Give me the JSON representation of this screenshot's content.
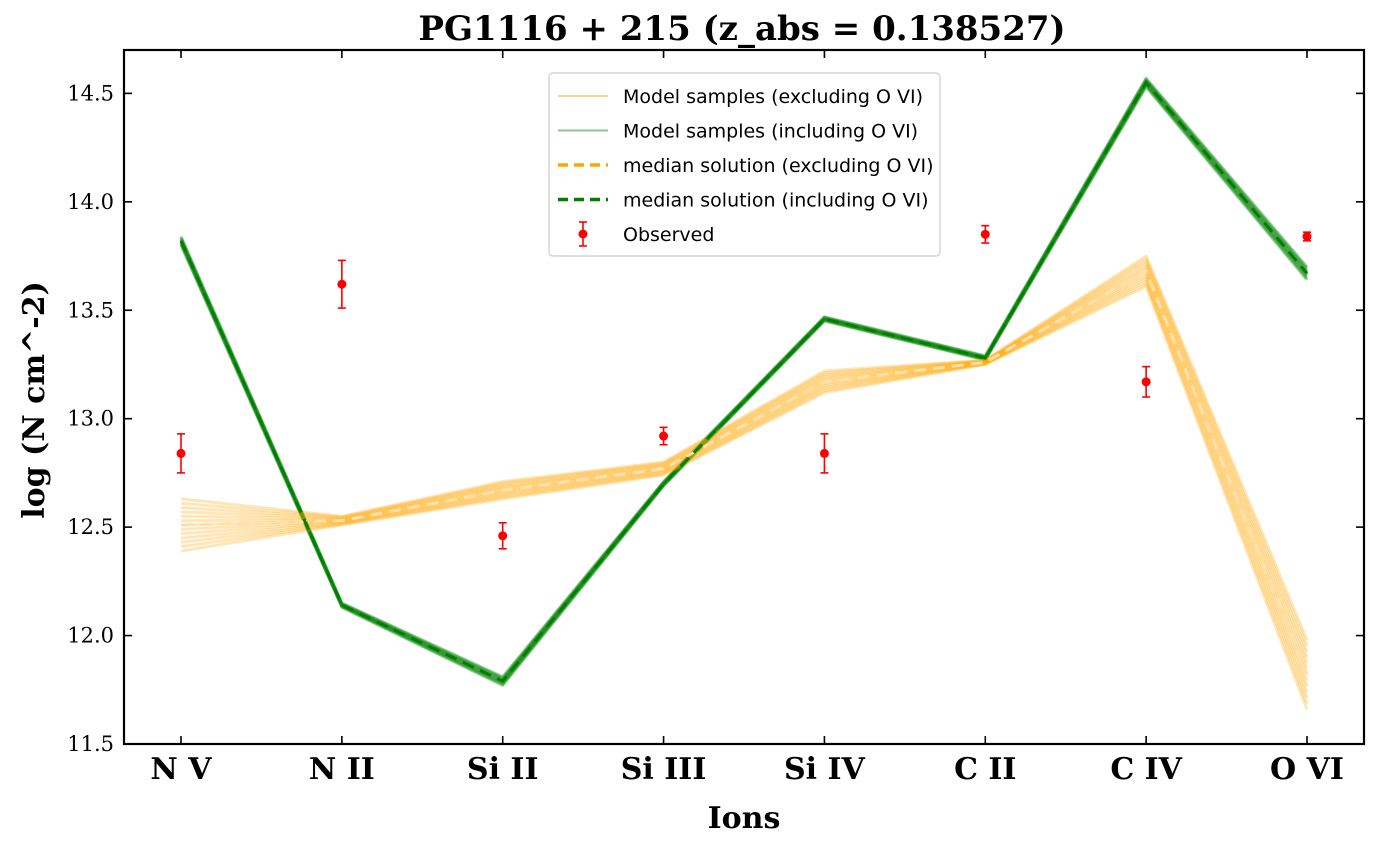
{
  "chart_data": {
    "type": "line",
    "title": "PG1116 + 215 (z_abs = 0.138527)",
    "xlabel": "Ions",
    "ylabel": "log (N cm^-2)",
    "categories": [
      "N V",
      "N II",
      "Si II",
      "Si III",
      "Si IV",
      "C II",
      "C IV",
      "O VI"
    ],
    "ylim": [
      11.5,
      14.7
    ],
    "yticks": [
      "11.5",
      "12.0",
      "12.5",
      "13.0",
      "13.5",
      "14.0",
      "14.5"
    ],
    "grid": false,
    "legend_position": "top-center",
    "series": [
      {
        "name": "median solution (excluding O VI)",
        "color": "#ffa500",
        "style": "dashed",
        "values": [
          12.51,
          12.53,
          12.67,
          12.77,
          13.17,
          13.26,
          13.68,
          11.82
        ]
      },
      {
        "name": "median solution (including O VI)",
        "color": "#008000",
        "style": "dashed",
        "values": [
          13.82,
          12.14,
          11.79,
          12.7,
          13.46,
          13.28,
          14.55,
          13.67
        ]
      },
      {
        "name": "Observed",
        "color": "#ff0000",
        "style": "errorbar",
        "values": [
          12.84,
          13.62,
          12.46,
          12.92,
          12.84,
          13.85,
          13.17,
          13.84
        ],
        "errors": [
          0.09,
          0.11,
          0.06,
          0.04,
          0.09,
          0.04,
          0.07,
          0.02
        ]
      }
    ],
    "legend": [
      "Model samples (excluding O VI)",
      "Model samples (including O VI)",
      "median solution (excluding O VI)",
      "median solution (including O VI)",
      "Observed"
    ]
  }
}
